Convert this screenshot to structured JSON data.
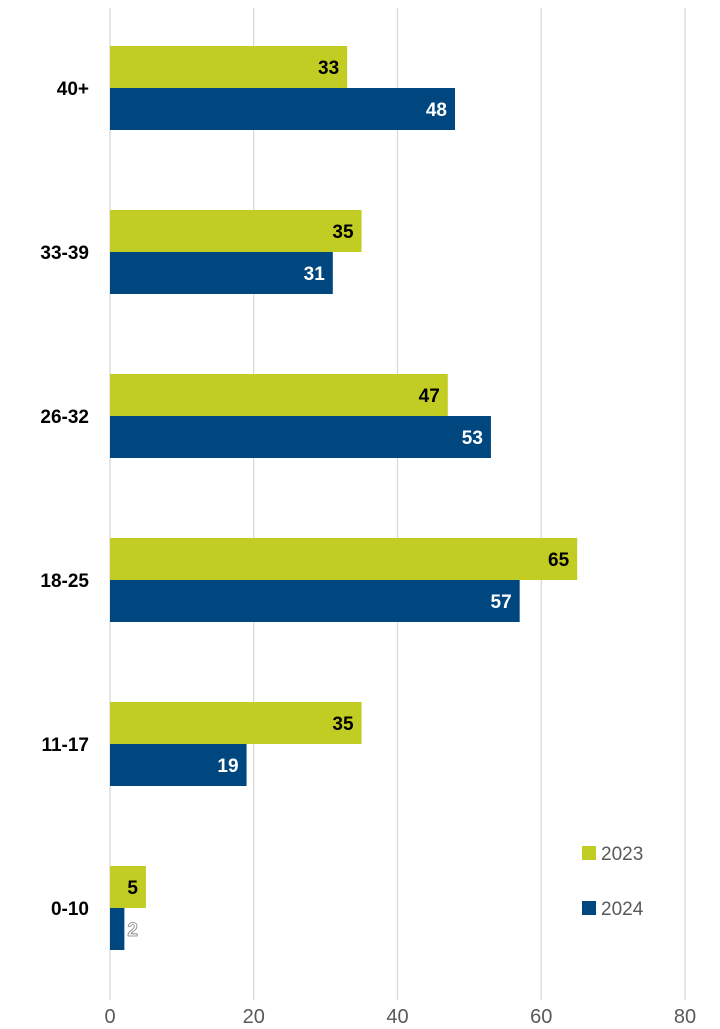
{
  "chart_data": {
    "type": "bar",
    "orientation": "horizontal",
    "categories": [
      "40+",
      "33-39",
      "26-32",
      "18-25",
      "11-17",
      "0-10"
    ],
    "series": [
      {
        "name": "2023",
        "color": "#c2cd23",
        "values": [
          33,
          35,
          47,
          65,
          35,
          5
        ],
        "label_color": "#000000"
      },
      {
        "name": "2024",
        "color": "#00467f",
        "values": [
          48,
          31,
          53,
          57,
          19,
          2
        ],
        "label_color": "#ffffff"
      }
    ],
    "xlim": [
      0,
      80
    ],
    "x_ticks": [
      0,
      20,
      40,
      60,
      80
    ],
    "gridlines": true,
    "legend_position": "bottom-right"
  }
}
